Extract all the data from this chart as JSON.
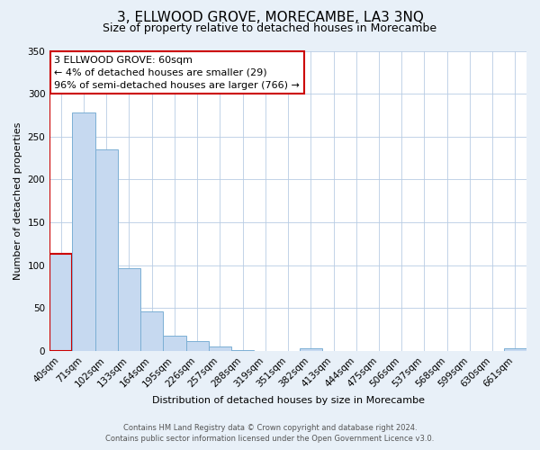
{
  "title": "3, ELLWOOD GROVE, MORECAMBE, LA3 3NQ",
  "subtitle": "Size of property relative to detached houses in Morecambe",
  "xlabel": "Distribution of detached houses by size in Morecambe",
  "ylabel": "Number of detached properties",
  "bar_labels": [
    "40sqm",
    "71sqm",
    "102sqm",
    "133sqm",
    "164sqm",
    "195sqm",
    "226sqm",
    "257sqm",
    "288sqm",
    "319sqm",
    "351sqm",
    "382sqm",
    "413sqm",
    "444sqm",
    "475sqm",
    "506sqm",
    "537sqm",
    "568sqm",
    "599sqm",
    "630sqm",
    "661sqm"
  ],
  "bar_values": [
    113,
    278,
    235,
    96,
    46,
    18,
    11,
    5,
    1,
    0,
    0,
    3,
    0,
    0,
    0,
    0,
    0,
    0,
    0,
    0,
    3
  ],
  "bar_color": "#c6d9f0",
  "bar_edgecolor": "#7bafd4",
  "highlight_bar_edgecolor": "#cc0000",
  "vline_color": "#cc0000",
  "annotation_text": "3 ELLWOOD GROVE: 60sqm\n← 4% of detached houses are smaller (29)\n96% of semi-detached houses are larger (766) →",
  "annotation_box_color": "white",
  "annotation_box_edgecolor": "#cc0000",
  "ylim": [
    0,
    350
  ],
  "yticks": [
    0,
    50,
    100,
    150,
    200,
    250,
    300,
    350
  ],
  "footer_line1": "Contains HM Land Registry data © Crown copyright and database right 2024.",
  "footer_line2": "Contains public sector information licensed under the Open Government Licence v3.0.",
  "bg_color": "#e8f0f8",
  "plot_bg_color": "#ffffff",
  "title_fontsize": 11,
  "subtitle_fontsize": 9,
  "annotation_fontsize": 8,
  "axis_fontsize": 8,
  "tick_fontsize": 7.5,
  "footer_fontsize": 6
}
